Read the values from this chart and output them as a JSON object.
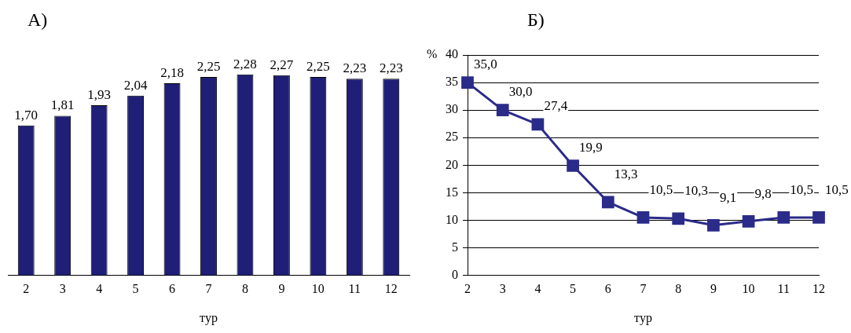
{
  "chart_data": [
    {
      "type": "bar",
      "title": "А)",
      "xlabel": "тур",
      "categories": [
        "2",
        "3",
        "4",
        "5",
        "6",
        "7",
        "8",
        "9",
        "10",
        "11",
        "12"
      ],
      "color": "#1f1f78",
      "values": [
        1.7,
        1.81,
        1.93,
        2.04,
        2.18,
        2.25,
        2.28,
        2.27,
        2.25,
        2.23,
        2.23
      ],
      "value_labels": [
        "1,70",
        "1,81",
        "1,93",
        "2,04",
        "2,18",
        "2,25",
        "2,28",
        "2,27",
        "2,25",
        "2,23",
        "2,23"
      ],
      "tick_labels": "x",
      "grid": false,
      "legend": false
    },
    {
      "type": "line",
      "title": "Б)",
      "xlabel": "тур",
      "ylabel": "%",
      "categories": [
        "2",
        "3",
        "4",
        "5",
        "6",
        "7",
        "8",
        "9",
        "10",
        "11",
        "12"
      ],
      "color": "#2b2b8a",
      "values": [
        35.0,
        30.0,
        27.4,
        19.9,
        13.3,
        10.5,
        10.3,
        9.1,
        9.8,
        10.5,
        10.5
      ],
      "value_labels": [
        "35,0",
        "30,0",
        "27,4",
        "19,9",
        "13,3",
        "10,5",
        "10,3",
        "9,1",
        "9,8",
        "10,5",
        "10,5"
      ],
      "ylim": [
        0,
        40
      ],
      "yticks": [
        0,
        5,
        10,
        15,
        20,
        25,
        30,
        35,
        40
      ],
      "grid": "y",
      "marker": "square",
      "line_style": "solid",
      "legend": false
    }
  ]
}
